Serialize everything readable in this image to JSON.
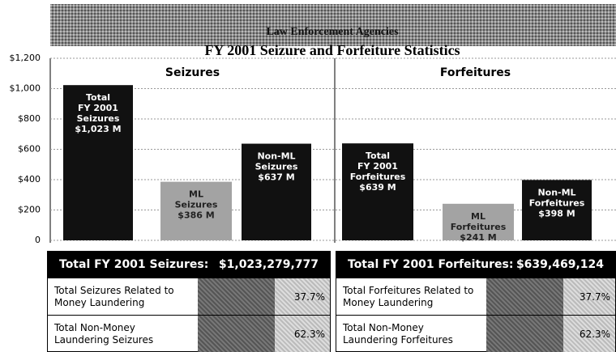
{
  "header": {
    "subtitle": "Law Enforcement Agencies"
  },
  "chart_data": {
    "type": "bar",
    "title": "FY 2001 Seizure and Forfeiture Statistics",
    "ylim": [
      0,
      1200
    ],
    "yticks": [
      0,
      {
        "value": 200,
        "label": "$200"
      },
      {
        "value": 400,
        "label": "$400"
      },
      {
        "value": 600,
        "label": "$600"
      },
      {
        "value": 800,
        "label": "$800"
      },
      {
        "value": 1000,
        "label": "$1,000"
      },
      {
        "value": 1200,
        "label": "$1,200"
      }
    ],
    "grid": true,
    "panels": [
      {
        "title": "Seizures",
        "categories": [
          [
            "Total",
            "FY 2001",
            "Seizures"
          ],
          [
            "ML",
            "Seizures"
          ],
          [
            "Non-ML",
            "Seizures"
          ]
        ],
        "values": [
          1023,
          386,
          637
        ],
        "value_labels": [
          "$1,023 M",
          "$386 M",
          "$637 M"
        ],
        "colors": [
          "#111111",
          "#a3a3a3",
          "#111111"
        ]
      },
      {
        "title": "Forfeitures",
        "categories": [
          [
            "Total",
            "FY 2001",
            "Forfeitures"
          ],
          [
            "ML",
            "Forfeitures"
          ],
          [
            "Non-ML",
            "Forfeitures"
          ]
        ],
        "values": [
          639,
          241,
          398
        ],
        "value_labels": [
          "$639 M",
          "$241 M",
          "$398 M"
        ],
        "colors": [
          "#111111",
          "#a3a3a3",
          "#111111"
        ]
      }
    ]
  },
  "tables": [
    {
      "title": "Total FY 2001 Seizures:",
      "total": "$1,023,279,777",
      "rows": [
        {
          "label": "Total Seizures Related to Money Laundering",
          "share": "37.7%"
        },
        {
          "label": "Total Non-Money Laundering Seizures",
          "share": "62.3%"
        }
      ]
    },
    {
      "title": "Total FY 2001 Forfeitures:",
      "total": "$639,469,124",
      "rows": [
        {
          "label": "Total Forfeitures Related to Money Laundering",
          "share": "37.7%"
        },
        {
          "label": "Total Non-Money Laundering Forfeitures",
          "share": "62.3%"
        }
      ]
    }
  ]
}
